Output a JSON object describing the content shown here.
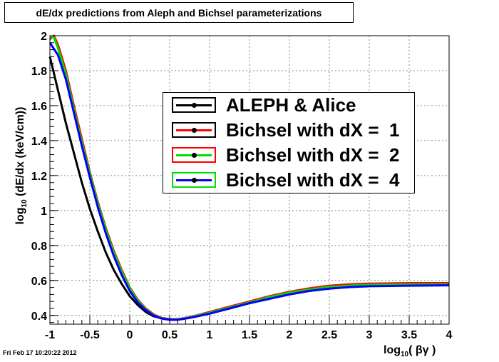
{
  "chart_data": {
    "type": "line",
    "title": "dE/dx predictions from Aleph and Bichsel parameterizations",
    "xlabel_main": "log",
    "xlabel_sub": "10",
    "xlabel_rest": "( βγ  )",
    "ylabel_main": "log",
    "ylabel_sub": "10",
    "ylabel_rest": " (dE/dx (keV/cm))",
    "xlim": [
      -1,
      4
    ],
    "ylim": [
      0.35,
      2.0
    ],
    "xticks": [
      -1,
      -0.5,
      0,
      0.5,
      1,
      1.5,
      2,
      2.5,
      3,
      3.5,
      4
    ],
    "xtick_labels": [
      "-1",
      "-0.5",
      "0",
      "0.5",
      "1",
      "1.5",
      "2",
      "2.5",
      "3",
      "3.5",
      "4"
    ],
    "yticks": [
      0.4,
      0.6,
      0.8,
      1.0,
      1.2,
      1.4,
      1.6,
      1.8,
      2.0
    ],
    "ytick_labels": [
      "0.4",
      "0.6",
      "0.8",
      "1",
      "1.2",
      "1.4",
      "1.6",
      "1.8",
      "2"
    ],
    "grid": true,
    "legend_position": "upper-right",
    "series": [
      {
        "name": "ALEPH & Alice",
        "color": "#000000",
        "marker_box_color": "#000000",
        "x": [
          -1.0,
          -0.9,
          -0.8,
          -0.7,
          -0.6,
          -0.5,
          -0.4,
          -0.3,
          -0.2,
          -0.1,
          0.0,
          0.1,
          0.2,
          0.3,
          0.4,
          0.5,
          0.6,
          0.7,
          0.8,
          1.0,
          1.25,
          1.5,
          1.75,
          2.0,
          2.25,
          2.5,
          2.75,
          3.0,
          3.5,
          4.0
        ],
        "y": [
          1.88,
          1.69,
          1.5,
          1.33,
          1.16,
          1.01,
          0.88,
          0.76,
          0.66,
          0.58,
          0.51,
          0.46,
          0.42,
          0.395,
          0.385,
          0.378,
          0.378,
          0.385,
          0.395,
          0.415,
          0.44,
          0.47,
          0.5,
          0.525,
          0.545,
          0.56,
          0.57,
          0.575,
          0.578,
          0.58
        ]
      },
      {
        "name": "Bichsel with dX =  1",
        "color": "#ff0000",
        "marker_box_color": "#000000",
        "x": [
          -1.0,
          -0.95,
          -0.9,
          -0.8,
          -0.7,
          -0.6,
          -0.5,
          -0.4,
          -0.3,
          -0.2,
          -0.1,
          0.0,
          0.1,
          0.2,
          0.3,
          0.4,
          0.5,
          0.6,
          0.7,
          0.8,
          1.0,
          1.25,
          1.5,
          1.75,
          2.0,
          2.25,
          2.5,
          2.75,
          3.0,
          3.5,
          4.0
        ],
        "y": [
          1.98,
          2.0,
          1.95,
          1.8,
          1.6,
          1.41,
          1.22,
          1.05,
          0.9,
          0.77,
          0.66,
          0.56,
          0.49,
          0.44,
          0.405,
          0.385,
          0.378,
          0.378,
          0.385,
          0.395,
          0.42,
          0.45,
          0.48,
          0.51,
          0.535,
          0.555,
          0.57,
          0.578,
          0.582,
          0.585,
          0.585
        ]
      },
      {
        "name": "Bichsel with dX =  2",
        "color": "#00dd00",
        "marker_box_color": "#ff0000",
        "x": [
          -1.0,
          -0.95,
          -0.9,
          -0.8,
          -0.7,
          -0.6,
          -0.5,
          -0.4,
          -0.3,
          -0.2,
          -0.1,
          0.0,
          0.1,
          0.2,
          0.3,
          0.4,
          0.5,
          0.6,
          0.7,
          0.8,
          1.0,
          1.25,
          1.5,
          1.75,
          2.0,
          2.25,
          2.5,
          2.75,
          3.0,
          3.5,
          4.0
        ],
        "y": [
          1.99,
          1.99,
          1.93,
          1.78,
          1.58,
          1.39,
          1.21,
          1.04,
          0.89,
          0.76,
          0.65,
          0.555,
          0.485,
          0.435,
          0.4,
          0.383,
          0.376,
          0.376,
          0.383,
          0.393,
          0.415,
          0.445,
          0.475,
          0.505,
          0.53,
          0.548,
          0.563,
          0.57,
          0.575,
          0.578,
          0.578
        ]
      },
      {
        "name": "Bichsel with dX =  4",
        "color": "#0000ff",
        "marker_box_color": "#00dd00",
        "x": [
          -1.0,
          -0.9,
          -0.8,
          -0.7,
          -0.6,
          -0.5,
          -0.4,
          -0.3,
          -0.2,
          -0.1,
          0.0,
          0.1,
          0.2,
          0.3,
          0.4,
          0.5,
          0.6,
          0.7,
          0.8,
          1.0,
          1.25,
          1.5,
          1.75,
          2.0,
          2.25,
          2.5,
          2.75,
          3.0,
          3.5,
          4.0
        ],
        "y": [
          1.96,
          1.89,
          1.75,
          1.56,
          1.37,
          1.19,
          1.02,
          0.87,
          0.74,
          0.63,
          0.54,
          0.475,
          0.43,
          0.398,
          0.382,
          0.375,
          0.375,
          0.382,
          0.39,
          0.41,
          0.44,
          0.47,
          0.495,
          0.52,
          0.54,
          0.553,
          0.562,
          0.567,
          0.57,
          0.572
        ]
      }
    ]
  },
  "timestamp": "Fri Feb 17 10:20:22 2012"
}
